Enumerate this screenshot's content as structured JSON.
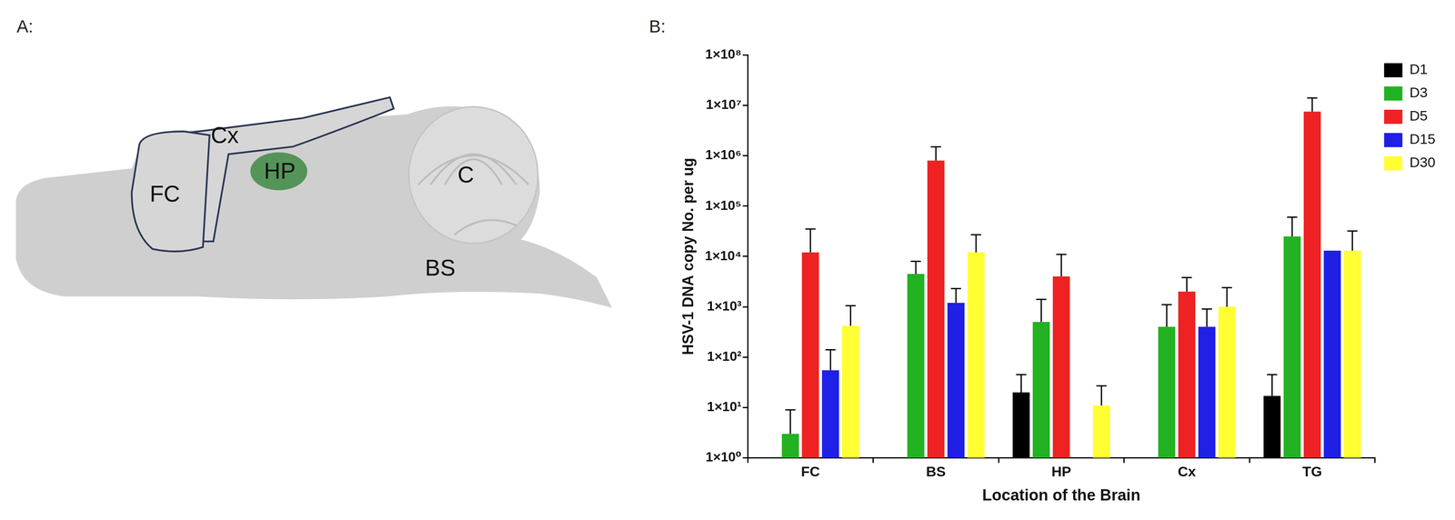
{
  "diagram": {
    "letter": "A:",
    "labels": [
      "FC",
      "Cx",
      "HP",
      "C",
      "BS"
    ]
  },
  "chart_data": {
    "letter": "B:",
    "type": "bar",
    "x_label": "Location of the Brain",
    "y_label": "HSV-1 DNA copy No. per ug",
    "categories": [
      "FC",
      "BS",
      "HP",
      "Cx",
      "TG"
    ],
    "log": "y",
    "ylim": [
      1,
      100000000
    ],
    "yticks": [
      {
        "value": 1,
        "label": "1×10⁰"
      },
      {
        "value": 10,
        "label": "1×10¹"
      },
      {
        "value": 100,
        "label": "1×10²"
      },
      {
        "value": 1000,
        "label": "1×10³"
      },
      {
        "value": 10000,
        "label": "1×10⁴"
      },
      {
        "value": 100000,
        "label": "1×10⁵"
      },
      {
        "value": 1000000,
        "label": "1×10⁶"
      },
      {
        "value": 10000000,
        "label": "1×10⁷"
      },
      {
        "value": 100000000,
        "label": "1×10⁸"
      }
    ],
    "grid": false,
    "legend": "right",
    "series": [
      {
        "name": "D1",
        "color": "#000000",
        "values": [
          null,
          null,
          20,
          null,
          17
        ],
        "errors": [
          null,
          null,
          25,
          null,
          28
        ]
      },
      {
        "name": "D3",
        "color": "#22b222",
        "values": [
          3,
          4500,
          500,
          400,
          25000
        ],
        "errors": [
          6,
          3500,
          900,
          700,
          35000
        ]
      },
      {
        "name": "D5",
        "color": "#ee2222",
        "values": [
          12000,
          800000,
          4000,
          2000,
          7500000
        ],
        "errors": [
          23000,
          700000,
          7000,
          1800,
          6500000
        ]
      },
      {
        "name": "D15",
        "color": "#1f1fe6",
        "values": [
          55,
          1200,
          null,
          400,
          13000
        ],
        "errors": [
          85,
          1100,
          null,
          500,
          null
        ]
      },
      {
        "name": "D30",
        "color": "#ffff33",
        "values": [
          420,
          12000,
          11,
          1000,
          13000
        ],
        "errors": [
          630,
          15000,
          16,
          1400,
          19000
        ]
      }
    ]
  }
}
